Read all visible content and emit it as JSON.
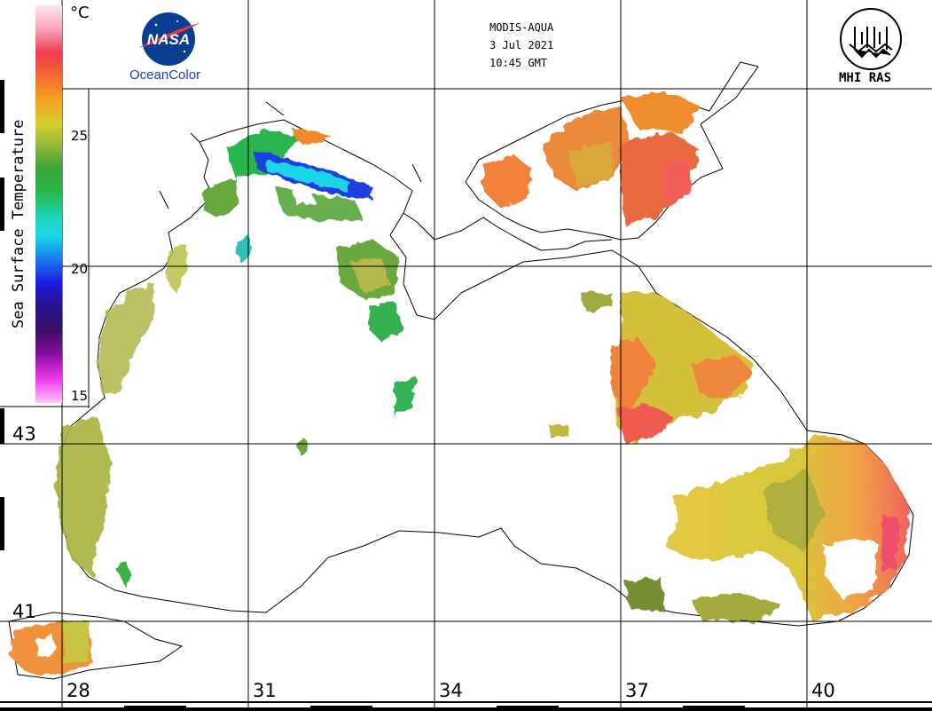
{
  "header": {
    "sensor": "MODIS-AQUA",
    "date": "3 Jul 2021",
    "time": "10:45 GMT"
  },
  "logos": {
    "nasa_caption": "OceanColor",
    "mhi_caption": "MHI RAS"
  },
  "colorbar": {
    "title": "Sea Surface Temperature",
    "unit": "°C",
    "ticks": [
      "25",
      "20",
      "15"
    ]
  },
  "axes": {
    "longitude_labels": [
      "28",
      "31",
      "34",
      "37",
      "40"
    ],
    "latitude_labels": [
      "43",
      "41"
    ]
  }
}
